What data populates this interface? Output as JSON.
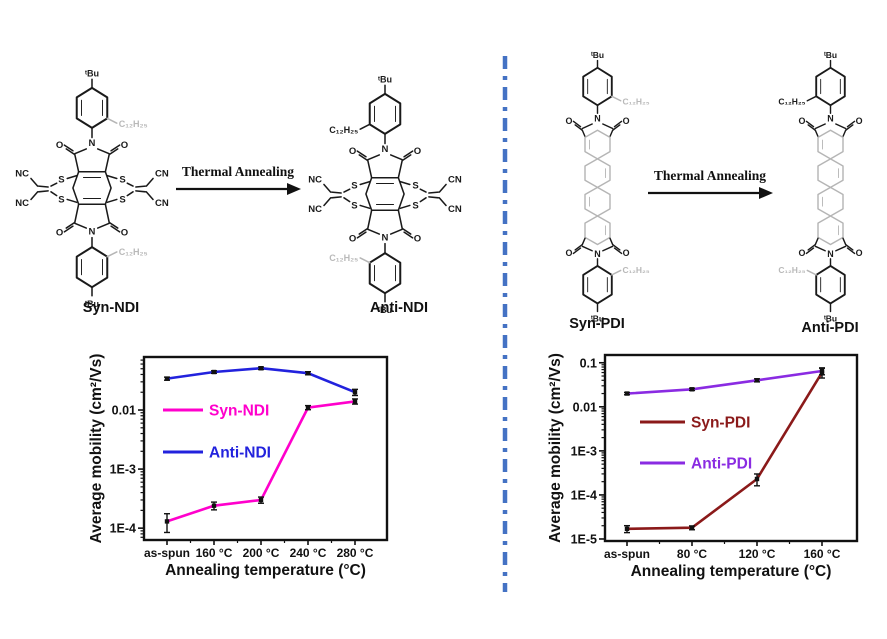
{
  "panels": {
    "left": {
      "reaction": {
        "reactant": "Syn-NDI",
        "product": "Anti-NDI",
        "arrow_text": "Thermal Annealing"
      },
      "atoms": {
        "tbu": "ᵗBu",
        "chain": "C₁₂H₂₅",
        "o": "O",
        "n": "N",
        "s": "S",
        "nc": "NC",
        "cn": "CN"
      }
    },
    "right": {
      "reaction": {
        "reactant": "Syn-PDI",
        "product": "Anti-PDI",
        "arrow_text": "Thermal Annealing"
      },
      "atoms": {
        "tbu": "ᵗBu",
        "chain": "C₁₂H₂₅",
        "o": "O",
        "n": "N"
      }
    },
    "divider_color": "#4472C4"
  },
  "chart_data": [
    {
      "type": "line",
      "title": "",
      "xlabel": "Annealing temperature (°C)",
      "ylabel": "Average mobility (cm²/Vs)",
      "x_categories": [
        "as-spun",
        "160 °C",
        "200 °C",
        "240 °C",
        "280 °C"
      ],
      "y_scale": "log",
      "y_tick_labels": [
        "0.01",
        "1E-3",
        "1E-4"
      ],
      "ylim": [
        6.3e-05,
        0.079
      ],
      "grid": false,
      "legend_position": "inside-middle-left",
      "series": [
        {
          "name": "Syn-NDI",
          "color": "#FF00CC",
          "values": [
            0.00013,
            0.00024,
            0.0003,
            0.011,
            0.014
          ],
          "yerr_pct": [
            35,
            15,
            12,
            8,
            10
          ]
        },
        {
          "name": "Anti-NDI",
          "color": "#2222DD",
          "values": [
            0.034,
            0.044,
            0.051,
            0.042,
            0.02
          ],
          "yerr_pct": [
            6,
            5,
            5,
            6,
            12
          ]
        }
      ]
    },
    {
      "type": "line",
      "title": "",
      "xlabel": "Annealing temperature (°C)",
      "ylabel": "Average mobility (cm²/Vs)",
      "x_categories": [
        "as-spun",
        "80 °C",
        "120 °C",
        "160 °C"
      ],
      "y_scale": "log",
      "y_tick_labels": [
        "0.1",
        "0.01",
        "1E-3",
        "1E-4",
        "1E-5"
      ],
      "ylim": [
        9e-06,
        0.15
      ],
      "grid": false,
      "legend_position": "inside-middle-left",
      "series": [
        {
          "name": "Syn-PDI",
          "color": "#8B1A1A",
          "values": [
            1.7e-05,
            1.8e-05,
            0.00023,
            0.06
          ],
          "yerr_pct": [
            18,
            10,
            30,
            25
          ]
        },
        {
          "name": "Anti-PDI",
          "color": "#8A2BE2",
          "values": [
            0.02,
            0.025,
            0.04,
            0.065
          ],
          "yerr_pct": [
            6,
            6,
            8,
            18
          ]
        }
      ]
    }
  ]
}
